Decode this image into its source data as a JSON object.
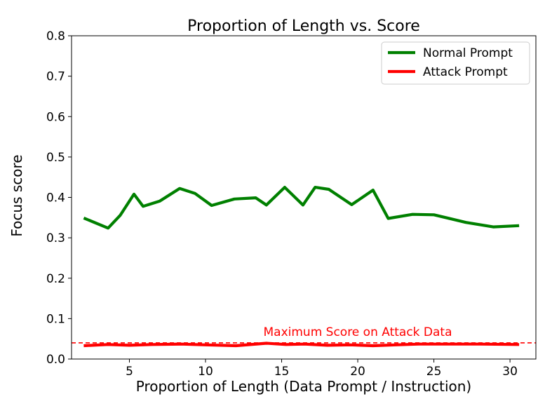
{
  "chart_data": {
    "type": "line",
    "title": "Proportion of Length vs. Score",
    "xlabel": "Proportion of Length (Data Prompt / Instruction)",
    "ylabel": "Focus score",
    "xlim": [
      1.2,
      31.7
    ],
    "ylim": [
      0.0,
      0.8
    ],
    "xticks": [
      "5",
      "10",
      "15",
      "20",
      "25",
      "30"
    ],
    "yticks": [
      "0.0",
      "0.1",
      "0.2",
      "0.3",
      "0.4",
      "0.5",
      "0.6",
      "0.7",
      "0.8"
    ],
    "grid": false,
    "legend_position": "upper right",
    "series": [
      {
        "name": "Normal Prompt",
        "color": "#008000",
        "points": [
          [
            2.0,
            0.349
          ],
          [
            3.6,
            0.324
          ],
          [
            4.4,
            0.356
          ],
          [
            5.3,
            0.408
          ],
          [
            5.9,
            0.378
          ],
          [
            7.0,
            0.391
          ],
          [
            8.3,
            0.422
          ],
          [
            9.3,
            0.41
          ],
          [
            10.4,
            0.38
          ],
          [
            11.9,
            0.396
          ],
          [
            13.3,
            0.399
          ],
          [
            14.0,
            0.381
          ],
          [
            15.2,
            0.425
          ],
          [
            16.4,
            0.381
          ],
          [
            17.2,
            0.425
          ],
          [
            18.1,
            0.42
          ],
          [
            19.6,
            0.382
          ],
          [
            21.0,
            0.418
          ],
          [
            22.0,
            0.348
          ],
          [
            23.6,
            0.358
          ],
          [
            25.0,
            0.357
          ],
          [
            27.1,
            0.338
          ],
          [
            28.9,
            0.327
          ],
          [
            30.6,
            0.33
          ]
        ]
      },
      {
        "name": "Attack Prompt",
        "color": "#ff0000",
        "points": [
          [
            2.0,
            0.033
          ],
          [
            3.6,
            0.036
          ],
          [
            5.0,
            0.034
          ],
          [
            6.5,
            0.036
          ],
          [
            8.4,
            0.037
          ],
          [
            10.0,
            0.035
          ],
          [
            12.0,
            0.033
          ],
          [
            14.0,
            0.039
          ],
          [
            15.3,
            0.036
          ],
          [
            16.5,
            0.037
          ],
          [
            18.0,
            0.034
          ],
          [
            19.5,
            0.035
          ],
          [
            21.0,
            0.033
          ],
          [
            22.5,
            0.035
          ],
          [
            24.0,
            0.037
          ],
          [
            26.0,
            0.037
          ],
          [
            28.0,
            0.037
          ],
          [
            30.6,
            0.036
          ]
        ]
      }
    ],
    "reference_line": {
      "label": "Maximum Score on Attack Data",
      "y": 0.04,
      "color": "#ff0000",
      "style": "dashed"
    }
  }
}
